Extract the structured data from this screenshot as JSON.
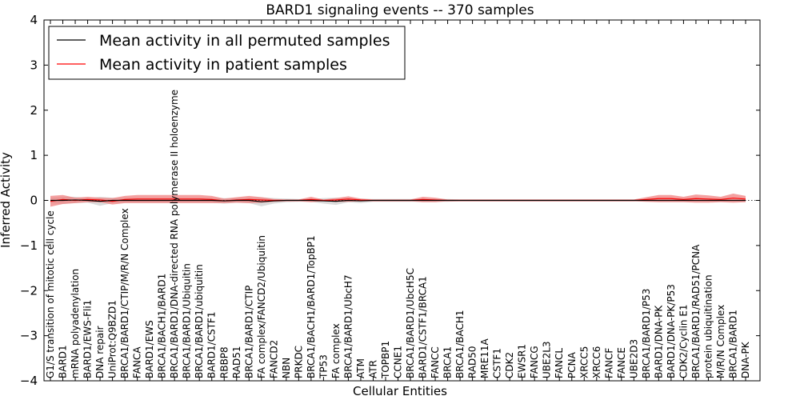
{
  "chart_data": {
    "type": "line",
    "title": "BARD1 signaling events -- 370 samples",
    "xlabel": "Cellular Entities",
    "ylabel": "Inferred Activity",
    "ylim": [
      -4,
      4
    ],
    "yticks": [
      4,
      3,
      2,
      1,
      0,
      -1,
      -2,
      -3,
      -4
    ],
    "ytick_labels": [
      "4",
      "3",
      "2",
      "1",
      "0",
      "−1",
      "−2",
      "−3",
      "−4"
    ],
    "legend_position": "top-left",
    "categories": [
      "G1/S transition of mitotic cell cycle",
      "BARD1",
      "mRNA polyadenylation",
      "BARD1/EWS-Fli1",
      "DNA repair",
      "UniProt:Q9BZD1",
      "BRCA1/BARD1/CTIP/M/R/N Complex",
      "FANCA",
      "BARD1/EWS",
      "BRCA1/BACH1/BARD1",
      "BRCA1/BARD1/DNA-directed RNA polymerase II holoenzyme",
      "BRCA1/BARD1/Ubiquitin",
      "BRCA1/BARD1/ubiquitin",
      "BARD1/CSTF1",
      "RBBP8",
      "RAD51",
      "BRCA1/BARD1/CTIP",
      "FA complex/FANCD2/Ubiquitin",
      "FANCD2",
      "NBN",
      "PRKDC",
      "BRCA1/BACH1/BARD1/TopBP1",
      "TP53",
      "FA complex",
      "BRCA1/BARD1/UbcH7",
      "ATM",
      "ATR",
      "TOPBP1",
      "CCNE1",
      "BRCA1/BARD1/UbcH5C",
      "BARD1/CSTF1/BRCA1",
      "FANCC",
      "BRCA1",
      "BRCA1/BACH1",
      "RAD50",
      "MRE11A",
      "CSTF1",
      "CDK2",
      "EWSR1",
      "FANCG",
      "UBE2L3",
      "FANCL",
      "PCNA",
      "XRCC5",
      "XRCC6",
      "FANCF",
      "FANCE",
      "UBE2D3",
      "BRCA1/BARD1/P53",
      "BARD1/DNA-PK",
      "BARD1/DNA-PK/P53",
      "CDK2/Cyclin E1",
      "BRCA1/BARD1/RAD51/PCNA",
      "protein ubiquitination",
      "M/R/N Complex",
      "BRCA1/BARD1",
      "DNA-PK"
    ],
    "series": [
      {
        "name": "Mean activity in all permuted samples",
        "color": "#000000",
        "band_color": "#cccccc",
        "values": [
          0.0,
          0.0,
          0.01,
          0.0,
          -0.02,
          0.0,
          0.0,
          0.0,
          0.0,
          0.0,
          0.0,
          0.0,
          0.0,
          0.0,
          -0.01,
          0.0,
          0.0,
          -0.03,
          -0.01,
          0.0,
          0.0,
          0.0,
          -0.01,
          -0.02,
          0.0,
          -0.01,
          0.0,
          0.0,
          0.0,
          0.0,
          0.0,
          0.0,
          0.0,
          0.0,
          0.0,
          0.0,
          0.0,
          0.0,
          0.0,
          0.0,
          0.0,
          0.0,
          0.0,
          0.0,
          0.0,
          0.0,
          0.0,
          0.0,
          0.0,
          0.0,
          0.0,
          0.0,
          0.0,
          0.0,
          0.0,
          0.0,
          0.0
        ],
        "band": [
          0.06,
          0.08,
          0.07,
          0.05,
          0.1,
          0.06,
          0.05,
          0.05,
          0.05,
          0.05,
          0.05,
          0.05,
          0.05,
          0.05,
          0.06,
          0.05,
          0.06,
          0.1,
          0.06,
          0.04,
          0.03,
          0.03,
          0.06,
          0.08,
          0.04,
          0.05,
          0.03,
          0.03,
          0.03,
          0.03,
          0.03,
          0.03,
          0.03,
          0.02,
          0.02,
          0.02,
          0.02,
          0.02,
          0.02,
          0.02,
          0.02,
          0.02,
          0.02,
          0.02,
          0.02,
          0.02,
          0.02,
          0.02,
          0.02,
          0.02,
          0.02,
          0.02,
          0.02,
          0.02,
          0.02,
          0.02,
          0.02
        ]
      },
      {
        "name": "Mean activity in patient samples",
        "color": "#ff0000",
        "band_color": "#f08080",
        "values": [
          -0.02,
          0.02,
          0.0,
          0.02,
          0.01,
          -0.02,
          0.02,
          0.03,
          0.03,
          0.03,
          0.03,
          0.03,
          0.03,
          0.02,
          -0.01,
          0.01,
          0.02,
          0.01,
          0.0,
          0.0,
          0.0,
          0.02,
          0.0,
          0.01,
          0.03,
          0.01,
          0.0,
          0.0,
          0.0,
          0.0,
          0.02,
          0.01,
          0.0,
          0.0,
          0.0,
          0.0,
          0.0,
          0.0,
          0.0,
          0.0,
          0.0,
          0.0,
          0.0,
          0.0,
          0.0,
          0.0,
          0.0,
          0.0,
          0.02,
          0.04,
          0.04,
          0.02,
          0.04,
          0.03,
          0.02,
          0.05,
          0.03
        ],
        "band": [
          0.12,
          0.1,
          0.06,
          0.06,
          0.05,
          0.07,
          0.08,
          0.09,
          0.09,
          0.09,
          0.09,
          0.09,
          0.09,
          0.08,
          0.05,
          0.06,
          0.08,
          0.06,
          0.03,
          0.02,
          0.02,
          0.06,
          0.02,
          0.04,
          0.06,
          0.03,
          0.02,
          0.02,
          0.02,
          0.02,
          0.06,
          0.05,
          0.02,
          0.02,
          0.02,
          0.02,
          0.02,
          0.02,
          0.02,
          0.02,
          0.02,
          0.02,
          0.02,
          0.02,
          0.02,
          0.02,
          0.02,
          0.02,
          0.05,
          0.08,
          0.08,
          0.06,
          0.09,
          0.08,
          0.06,
          0.1,
          0.07
        ]
      }
    ]
  }
}
